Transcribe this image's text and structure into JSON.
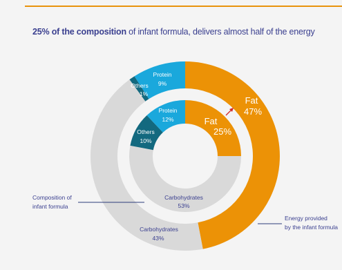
{
  "header": {
    "highlight": "25% of the composition",
    "rest": " of infant formula, delivers almost half of the energy"
  },
  "colors": {
    "fat": "#ec9206",
    "protein": "#1aa8dc",
    "others": "#13697f",
    "carbohydrates": "#d9d9d9",
    "accent_line": "#2c3b7a",
    "arrow": "#d02b2b",
    "rule": "#e8920b"
  },
  "chart_data": [
    {
      "type": "pie",
      "ring": "outer",
      "label": "Energy provided by the infant formula",
      "slices": [
        {
          "name": "Fat",
          "value": 47
        },
        {
          "name": "Carbohydrates",
          "value": 43
        },
        {
          "name": "Others",
          "value": 1
        },
        {
          "name": "Protein",
          "value": 9
        }
      ]
    },
    {
      "type": "pie",
      "ring": "inner",
      "label": "Composition of infant formula",
      "slices": [
        {
          "name": "Fat",
          "value": 25
        },
        {
          "name": "Carbohydrates",
          "value": 53
        },
        {
          "name": "Others",
          "value": 10
        },
        {
          "name": "Protein",
          "value": 12
        }
      ]
    }
  ],
  "labels": {
    "outer_fat_name": "Fat",
    "outer_fat_value": "47%",
    "outer_carb_name": "Carbohydrates",
    "outer_carb_value": "43%",
    "outer_others_name": "Others",
    "outer_others_value": "1%",
    "outer_protein_name": "Protein",
    "outer_protein_value": "9%",
    "inner_fat_name": "Fat",
    "inner_fat_value": "25%",
    "inner_carb_name": "Carbohydrates",
    "inner_carb_value": "53%",
    "inner_others_name": "Others",
    "inner_others_value": "10%",
    "inner_protein_name": "Protein",
    "inner_protein_value": "12%",
    "composition_line1": "Composition of",
    "composition_line2": "infant formula",
    "energy_line1": "Energy provided",
    "energy_line2": "by the infant formula"
  }
}
